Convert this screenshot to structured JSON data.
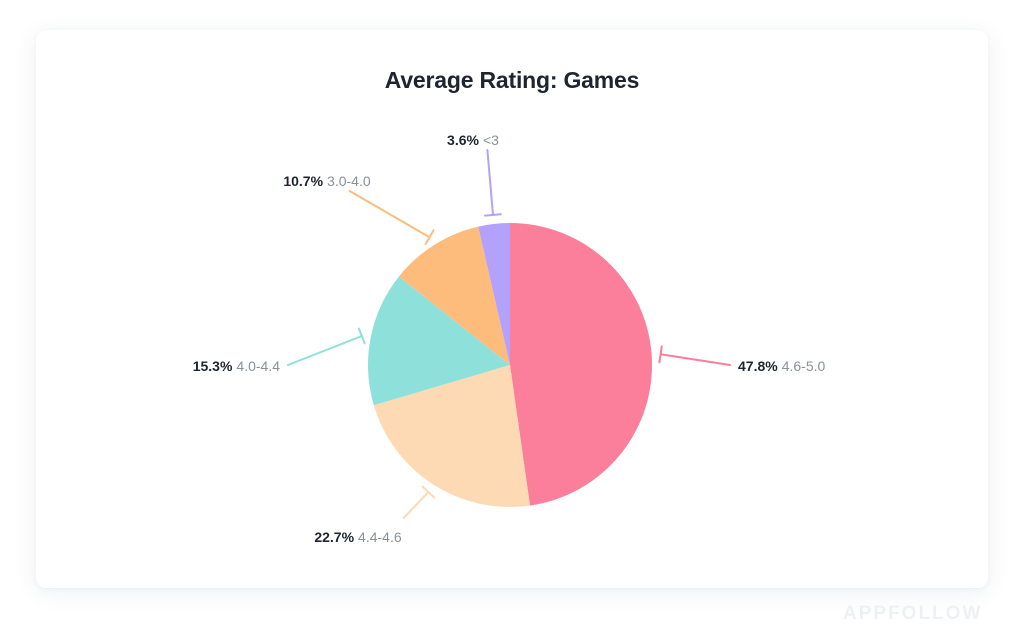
{
  "chart_data": {
    "type": "pie",
    "title": "Average Rating: Games",
    "slices": [
      {
        "label": "4.6-5.0",
        "value": 47.8,
        "value_text": "47.8%",
        "color": "#fb7f9a"
      },
      {
        "label": "4.4-4.6",
        "value": 22.7,
        "value_text": "22.7%",
        "color": "#fddab4"
      },
      {
        "label": "4.0-4.4",
        "value": 15.3,
        "value_text": "15.3%",
        "color": "#8ee0da"
      },
      {
        "label": "3.0-4.0",
        "value": 10.7,
        "value_text": "10.7%",
        "color": "#fdbc7b"
      },
      {
        "label": "<3",
        "value": 3.6,
        "value_text": "3.6%",
        "color": "#b3a1fb"
      }
    ]
  },
  "watermark": "APPFOLLOW"
}
